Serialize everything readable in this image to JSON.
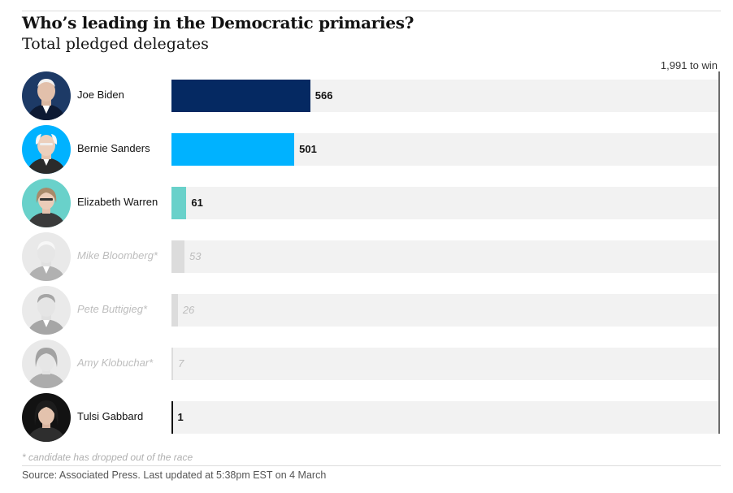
{
  "title": "Who’s leading in the Democratic primaries?",
  "subtitle": "Total pledged delegates",
  "win_label": "1,991 to win",
  "footnote": "* candidate has dropped out of the race",
  "source": "Source: Associated Press. Last updated at 5:38pm EST on 4 March",
  "colors": {
    "biden": "#052962",
    "sanders": "#00b2ff",
    "warren": "#69d1ca",
    "dropped": "#dcdcdc",
    "gabbard": "#121212",
    "track": "#f2f2f2"
  },
  "chart_data": {
    "type": "bar",
    "orientation": "horizontal",
    "title": "Who’s leading in the Democratic primaries?",
    "subtitle": "Total pledged delegates",
    "xlim": [
      0,
      2231
    ],
    "threshold": {
      "value": 1991,
      "label": "1,991 to win"
    },
    "categories": [
      "Joe Biden",
      "Bernie Sanders",
      "Elizabeth Warren",
      "Mike Bloomberg*",
      "Pete Buttigieg*",
      "Amy Klobuchar*",
      "Tulsi Gabbard"
    ],
    "values": [
      566,
      501,
      61,
      53,
      26,
      7,
      1
    ],
    "dropped_out": [
      false,
      false,
      false,
      true,
      true,
      true,
      false
    ]
  }
}
